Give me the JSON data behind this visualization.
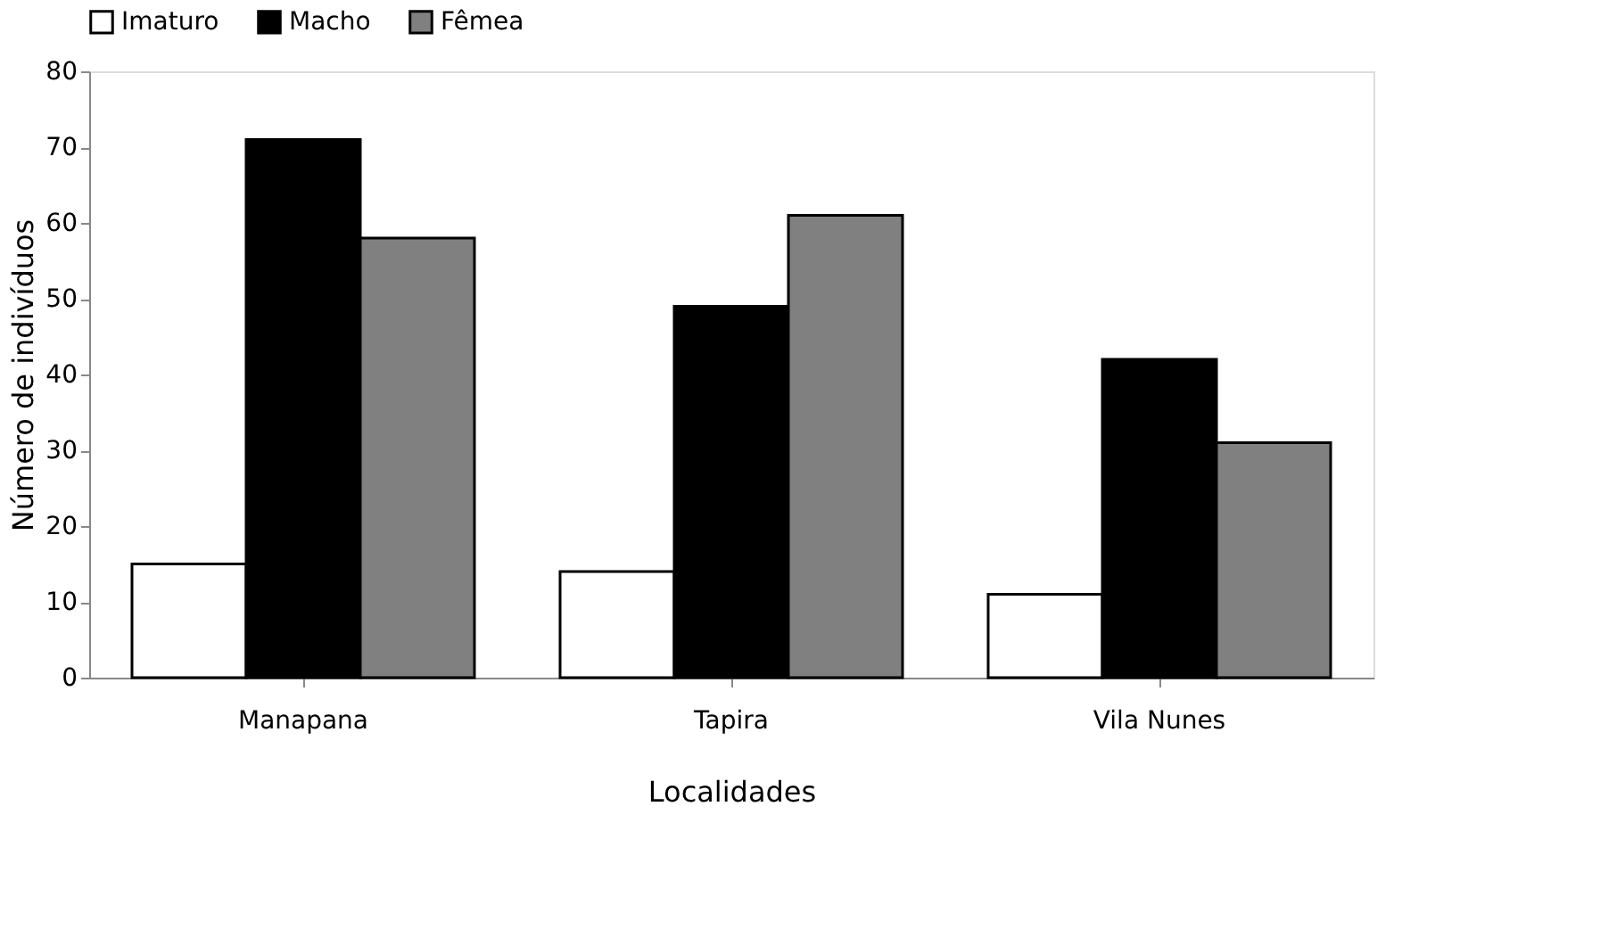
{
  "chart_data": {
    "type": "bar",
    "xlabel": "Localidades",
    "ylabel": "Número de indivíduos",
    "categories": [
      "Manapana",
      "Tapira",
      "Vila Nunes"
    ],
    "series": [
      {
        "name": "Imaturo",
        "color": "#ffffff",
        "values": [
          15,
          14,
          11
        ]
      },
      {
        "name": "Macho",
        "color": "#000000",
        "values": [
          71,
          49,
          42
        ]
      },
      {
        "name": "Fêmea",
        "color": "#808080",
        "values": [
          58,
          61,
          31
        ]
      }
    ],
    "ylim": [
      0,
      80
    ],
    "yticks": [
      0,
      10,
      20,
      30,
      40,
      50,
      60,
      70,
      80
    ],
    "grid": false,
    "legend": "top"
  }
}
